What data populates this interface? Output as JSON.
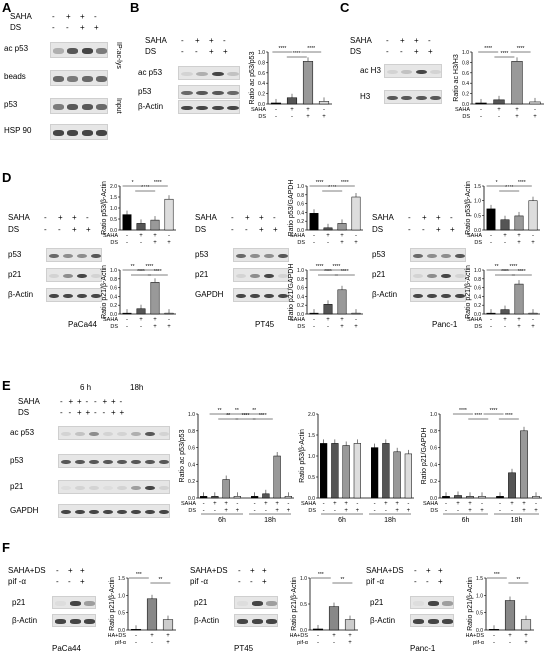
{
  "panels": {
    "A": {
      "label": "A",
      "treat_rows": [
        "SAHA",
        "DS"
      ],
      "signs": [
        [
          "-",
          "+",
          "+",
          "-"
        ],
        [
          "-",
          "-",
          "+",
          "+"
        ]
      ],
      "blots": [
        "ac p53",
        "beads",
        "p53",
        "HSP 90"
      ],
      "side1": "IP:ac-lys",
      "side2": "Input"
    },
    "B": {
      "label": "B",
      "treat_rows": [
        "SAHA",
        "DS"
      ],
      "signs": [
        [
          "-",
          "+",
          "+",
          "-"
        ],
        [
          "-",
          "-",
          "+",
          "+"
        ]
      ],
      "blots": [
        "ac p53",
        "p53",
        "β-Actin"
      ]
    },
    "C": {
      "label": "C",
      "treat_rows": [
        "SAHA",
        "DS"
      ],
      "signs": [
        [
          "-",
          "+",
          "+",
          "-"
        ],
        [
          "-",
          "-",
          "+",
          "+"
        ]
      ],
      "blots": [
        "ac H3",
        "H3"
      ]
    },
    "D": {
      "label": "D",
      "cells": [
        {
          "name": "PaCa44",
          "blots": [
            "p53",
            "p21",
            "β-Actin"
          ]
        },
        {
          "name": "PT45",
          "blots": [
            "p53",
            "p21",
            "GAPDH"
          ]
        },
        {
          "name": "Panc-1",
          "blots": [
            "p53",
            "p21",
            "β-Actin"
          ]
        }
      ]
    },
    "E": {
      "label": "E",
      "times": [
        "6 h",
        "18h"
      ],
      "blots": [
        "ac p53",
        "p53",
        "p21",
        "GAPDH"
      ],
      "time_axis": [
        "6h",
        "18h"
      ]
    },
    "F": {
      "label": "F",
      "treat_rows": [
        "SAHA+DS",
        "pif -α"
      ],
      "signs": [
        [
          "-",
          "+",
          "+"
        ],
        [
          "-",
          "-",
          "+"
        ]
      ],
      "cells": [
        {
          "name": "PaCa44",
          "blots": [
            "p21",
            "β-Actin"
          ]
        },
        {
          "name": "PT45",
          "blots": [
            "p21",
            "β-Actin"
          ]
        },
        {
          "name": "Panc-1",
          "blots": [
            "p21",
            "β-Actin"
          ]
        }
      ]
    }
  },
  "chart_data": [
    {
      "id": "B-ratio",
      "type": "bar",
      "ylabel": "Ratio ac p53/p53",
      "ylim": [
        0,
        1.0
      ],
      "yticks": [
        "0.0",
        "0.2",
        "0.4",
        "0.6",
        "0.8",
        "1.0"
      ],
      "categories": [
        "1",
        "2",
        "3",
        "4"
      ],
      "values": [
        0.02,
        0.12,
        0.82,
        0.05
      ],
      "row_labels": [
        "SAHA",
        "DS"
      ],
      "signs": [
        [
          "-",
          "+",
          "+",
          "-"
        ],
        [
          "-",
          "-",
          "+",
          "+"
        ]
      ],
      "sig": [
        "****",
        "****",
        "****"
      ]
    },
    {
      "id": "C-ratio",
      "type": "bar",
      "ylabel": "Ratio ac H3/H3",
      "ylim": [
        0,
        1.0
      ],
      "yticks": [
        "0.0",
        "0.2",
        "0.4",
        "0.6",
        "0.8",
        "1.0"
      ],
      "categories": [
        "1",
        "2",
        "3",
        "4"
      ],
      "values": [
        0.02,
        0.08,
        0.82,
        0.04
      ],
      "row_labels": [
        "SAHA",
        "DS"
      ],
      "signs": [
        [
          "-",
          "+",
          "+",
          "-"
        ],
        [
          "-",
          "-",
          "+",
          "+"
        ]
      ],
      "sig": [
        "****",
        "****",
        "****"
      ]
    },
    {
      "id": "D-PaCa44-p53",
      "type": "bar",
      "ylabel": "Ratio p53/β-Actin",
      "ylim": [
        0,
        2.0
      ],
      "yticks": [
        "0.0",
        "0.5",
        "1.0",
        "1.5",
        "2.0"
      ],
      "values": [
        0.7,
        0.3,
        0.45,
        1.4
      ],
      "row_labels": [
        "SAHA",
        "DS"
      ],
      "signs": [
        [
          "-",
          "+",
          "+",
          "-"
        ],
        [
          "-",
          "-",
          "+",
          "+"
        ]
      ],
      "sig": [
        "*",
        "****",
        "****"
      ]
    },
    {
      "id": "D-PaCa44-p21",
      "type": "bar",
      "ylabel": "Ratio p21/β-Actin",
      "ylim": [
        0,
        1.0
      ],
      "yticks": [
        "0.0",
        "0.2",
        "0.4",
        "0.6",
        "0.8",
        "1.0"
      ],
      "values": [
        0.02,
        0.12,
        0.72,
        0.02
      ],
      "row_labels": [
        "SAHA",
        "DS"
      ],
      "signs": [
        [
          "-",
          "+",
          "+",
          "-"
        ],
        [
          "-",
          "-",
          "+",
          "+"
        ]
      ],
      "sig": [
        "**",
        "****",
        "****",
        "****"
      ]
    },
    {
      "id": "D-PT45-p53",
      "type": "bar",
      "ylabel": "Ratio p53/GAPDH",
      "ylim": [
        0,
        1.0
      ],
      "yticks": [
        "0.0",
        "0.2",
        "0.4",
        "0.6",
        "0.8",
        "1.0"
      ],
      "values": [
        0.38,
        0.05,
        0.15,
        0.75
      ],
      "row_labels": [
        "SAHA",
        "DS"
      ],
      "signs": [
        [
          "-",
          "+",
          "+",
          "-"
        ],
        [
          "-",
          "-",
          "+",
          "+"
        ]
      ],
      "sig": [
        "****",
        "****",
        "****"
      ]
    },
    {
      "id": "D-PT45-p21",
      "type": "bar",
      "ylabel": "Ratio p21/GAPDH",
      "ylim": [
        0,
        1.0
      ],
      "yticks": [
        "0.0",
        "0.2",
        "0.4",
        "0.6",
        "0.8",
        "1.0"
      ],
      "values": [
        0.02,
        0.22,
        0.55,
        0.02
      ],
      "row_labels": [
        "SAHA",
        "DS"
      ],
      "signs": [
        [
          "-",
          "+",
          "+",
          "-"
        ],
        [
          "-",
          "-",
          "+",
          "+"
        ]
      ],
      "sig": [
        "****",
        "****",
        "****",
        "****"
      ]
    },
    {
      "id": "D-Panc1-p53",
      "type": "bar",
      "ylabel": "Ratio p53/β-Actin",
      "ylim": [
        0,
        1.5
      ],
      "yticks": [
        "0.0",
        "0.5",
        "1.0",
        "1.5"
      ],
      "values": [
        0.72,
        0.35,
        0.48,
        1.0
      ],
      "row_labels": [
        "SAHA",
        "DS"
      ],
      "signs": [
        [
          "-",
          "+",
          "+",
          "-"
        ],
        [
          "-",
          "-",
          "+",
          "+"
        ]
      ],
      "sig": [
        "*",
        "****",
        "****"
      ]
    },
    {
      "id": "D-Panc1-p21",
      "type": "bar",
      "ylabel": "Ratio p21/β-Actin",
      "ylim": [
        0,
        1.0
      ],
      "yticks": [
        "0.0",
        "0.2",
        "0.4",
        "0.6",
        "0.8",
        "1.0"
      ],
      "values": [
        0.02,
        0.1,
        0.68,
        0.02
      ],
      "row_labels": [
        "SAHA",
        "DS"
      ],
      "signs": [
        [
          "-",
          "+",
          "+",
          "-"
        ],
        [
          "-",
          "-",
          "+",
          "+"
        ]
      ],
      "sig": [
        "**",
        "****",
        "****",
        "****"
      ]
    },
    {
      "id": "E-acp53",
      "type": "bar",
      "ylabel": "Ratio ac p53/p53",
      "ylim": [
        0,
        1.0
      ],
      "yticks": [
        "0.0",
        "0.2",
        "0.4",
        "0.6",
        "0.8",
        "1.0"
      ],
      "values": [
        0.02,
        0.02,
        0.22,
        0.02,
        0.02,
        0.05,
        0.5,
        0.02
      ],
      "row_labels": [
        "SAHA",
        "DS"
      ],
      "signs": [
        [
          "-",
          "+",
          "+",
          "-",
          "-",
          "+",
          "+",
          "-"
        ],
        [
          "-",
          "-",
          "+",
          "+",
          "-",
          "-",
          "+",
          "+"
        ]
      ],
      "groups": [
        "6h",
        "18h"
      ],
      "sig": [
        "**",
        "**",
        "**",
        "****",
        "**",
        "****"
      ]
    },
    {
      "id": "E-p53",
      "type": "bar",
      "ylabel": "Ratio p53/β-Actin",
      "ylim": [
        0,
        2.0
      ],
      "yticks": [
        "0.0",
        "0.5",
        "1.0",
        "1.5",
        "2.0"
      ],
      "values": [
        1.3,
        1.3,
        1.25,
        1.3,
        1.2,
        1.3,
        1.1,
        1.05
      ],
      "row_labels": [
        "SAHA",
        "DS"
      ],
      "signs": [
        [
          "-",
          "+",
          "+",
          "-",
          "-",
          "+",
          "+",
          "-"
        ],
        [
          "-",
          "-",
          "+",
          "+",
          "-",
          "-",
          "+",
          "+"
        ]
      ],
      "groups": [
        "6h",
        "18h"
      ]
    },
    {
      "id": "E-p21",
      "type": "bar",
      "ylabel": "Ratio p21/GAPDH",
      "ylim": [
        0,
        1.0
      ],
      "yticks": [
        "0.0",
        "0.2",
        "0.4",
        "0.6",
        "0.8",
        "1.0"
      ],
      "values": [
        0.02,
        0.03,
        0.02,
        0.02,
        0.02,
        0.3,
        0.8,
        0.02
      ],
      "row_labels": [
        "SAHA",
        "DS"
      ],
      "signs": [
        [
          "-",
          "+",
          "+",
          "-",
          "-",
          "+",
          "+",
          "-"
        ],
        [
          "-",
          "-",
          "+",
          "+",
          "-",
          "-",
          "+",
          "+"
        ]
      ],
      "groups": [
        "6h",
        "18h"
      ],
      "sig": [
        "****",
        "****",
        "****",
        "****"
      ]
    },
    {
      "id": "F-PaCa44",
      "type": "bar",
      "ylabel": "Ratio p21/β-Actin",
      "ylim": [
        0,
        1.5
      ],
      "yticks": [
        "0.0",
        "0.5",
        "1.0",
        "1.5"
      ],
      "values": [
        0.02,
        0.9,
        0.3
      ],
      "row_labels": [
        "SAHA+DS",
        "pif-α"
      ],
      "signs": [
        [
          "-",
          "+",
          "+"
        ],
        [
          "-",
          "-",
          "+"
        ]
      ],
      "sig": [
        "***",
        "**"
      ]
    },
    {
      "id": "F-PT45",
      "type": "bar",
      "ylabel": "Ratio p21/β-Actin",
      "ylim": [
        0,
        1.0
      ],
      "yticks": [
        "0.0",
        "0.5",
        "1.0"
      ],
      "values": [
        0.02,
        0.45,
        0.2
      ],
      "row_labels": [
        "SAHA+DS",
        "pif-α"
      ],
      "signs": [
        [
          "-",
          "+",
          "+"
        ],
        [
          "-",
          "-",
          "+"
        ]
      ],
      "sig": [
        "***",
        "**"
      ]
    },
    {
      "id": "F-Panc1",
      "type": "bar",
      "ylabel": "Ratio p21/β-Actin",
      "ylim": [
        0,
        1.5
      ],
      "yticks": [
        "0.0",
        "0.5",
        "1.0",
        "1.5"
      ],
      "values": [
        0.02,
        0.85,
        0.3
      ],
      "row_labels": [
        "SAHA+DS",
        "pif-α"
      ],
      "signs": [
        [
          "-",
          "+",
          "+"
        ],
        [
          "-",
          "-",
          "+"
        ]
      ],
      "sig": [
        "***",
        "**"
      ]
    }
  ]
}
